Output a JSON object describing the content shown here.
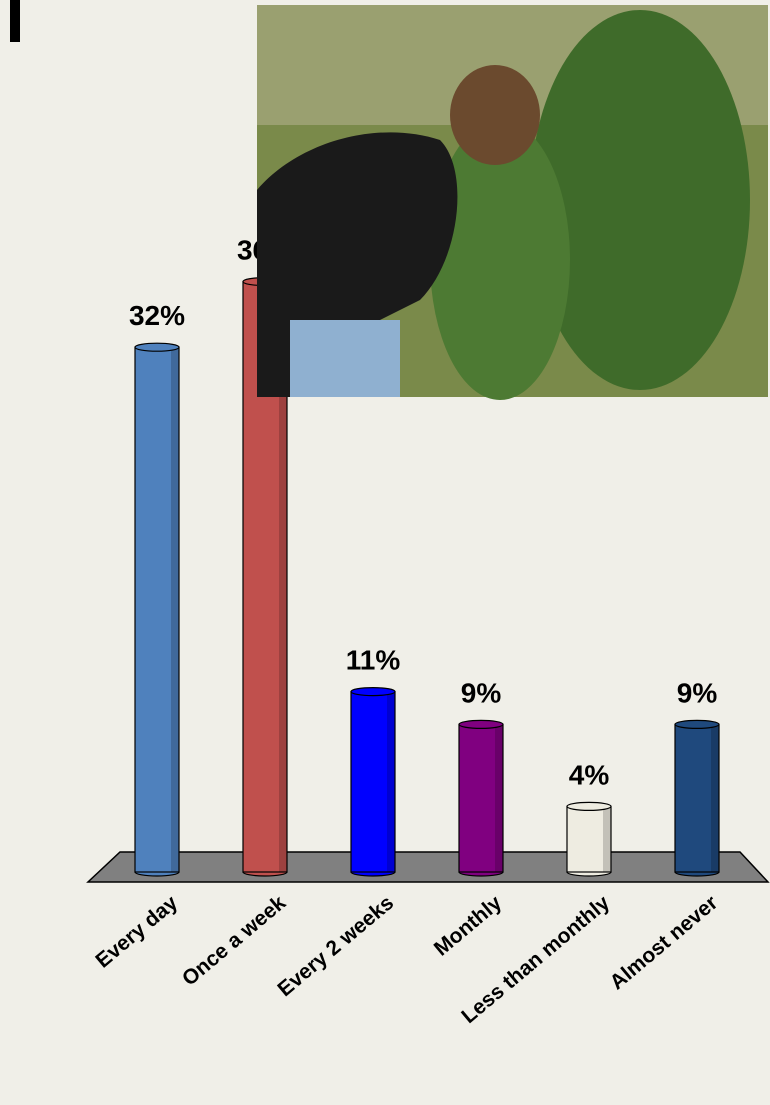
{
  "chart_data": {
    "type": "bar",
    "categories": [
      "Every day",
      "Once a week",
      "Every 2 weeks",
      "Monthly",
      "Less than monthly",
      "Almost never"
    ],
    "values": [
      32,
      36,
      11,
      9,
      4,
      9
    ],
    "value_labels": [
      "32%",
      "36%",
      "11%",
      "9%",
      "4%",
      "9%"
    ],
    "colors": [
      "#4f81bd",
      "#c0504d",
      "#0000ff",
      "#800080",
      "#eeece1",
      "#1f497d"
    ]
  }
}
